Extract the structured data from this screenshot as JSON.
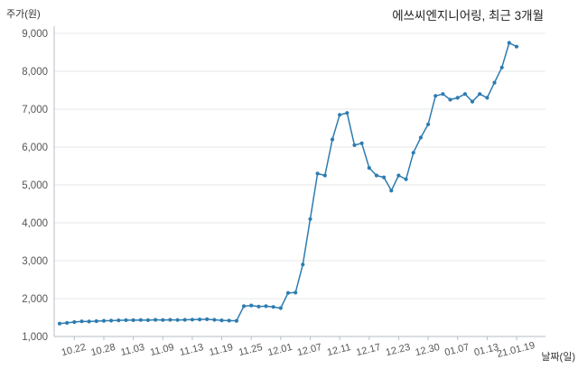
{
  "chart_data": {
    "type": "line",
    "title": "에쓰씨엔지니어링, 최근 3개월",
    "ylabel": "주가(원)",
    "xlabel": "날짜(일)",
    "ylim": [
      1000,
      9000
    ],
    "y_ticks": [
      1000,
      2000,
      3000,
      4000,
      5000,
      6000,
      7000,
      8000,
      9000
    ],
    "y_tick_labels": [
      "1,000",
      "2,000",
      "3,000",
      "4,000",
      "5,000",
      "6,000",
      "7,000",
      "8,000",
      "9,000"
    ],
    "x": [
      "10.20",
      "10.21",
      "10.22",
      "10.23",
      "10.26",
      "10.27",
      "10.28",
      "10.29",
      "10.30",
      "11.02",
      "11.03",
      "11.04",
      "11.05",
      "11.06",
      "11.09",
      "11.10",
      "11.11",
      "11.12",
      "11.13",
      "11.16",
      "11.17",
      "11.18",
      "11.19",
      "11.20",
      "11.23",
      "11.24",
      "11.25",
      "11.26",
      "11.27",
      "11.30",
      "12.01",
      "12.02",
      "12.03",
      "12.04",
      "12.07",
      "12.08",
      "12.09",
      "12.10",
      "12.11",
      "12.14",
      "12.15",
      "12.16",
      "12.17",
      "12.18",
      "12.21",
      "12.22",
      "12.23",
      "12.24",
      "12.28",
      "12.29",
      "12.30",
      "01.04",
      "01.05",
      "01.06",
      "01.07",
      "01.08",
      "01.11",
      "01.12",
      "01.13",
      "01.14",
      "01.15",
      "01.18",
      "01.19"
    ],
    "values": [
      1340,
      1360,
      1380,
      1400,
      1395,
      1405,
      1415,
      1420,
      1425,
      1430,
      1430,
      1435,
      1430,
      1440,
      1435,
      1440,
      1435,
      1440,
      1445,
      1450,
      1455,
      1440,
      1425,
      1420,
      1415,
      1800,
      1820,
      1790,
      1800,
      1780,
      1750,
      2150,
      2160,
      2900,
      4100,
      5300,
      5250,
      6200,
      6850,
      6900,
      6050,
      6100,
      5450,
      5250,
      5200,
      4850,
      5250,
      5150,
      5850,
      6250,
      6600,
      7350,
      7400,
      7250,
      7300,
      7400,
      7200,
      7400,
      7300,
      7700,
      8100,
      8750,
      8650
    ],
    "x_tick_indices": [
      2,
      6,
      10,
      14,
      18,
      22,
      26,
      30,
      34,
      38,
      42,
      46,
      50,
      54,
      58,
      62
    ],
    "x_tick_labels": [
      "10.22",
      "10.28",
      "11.03",
      "11.09",
      "11.13",
      "11.19",
      "11.25",
      "12.01",
      "12.07",
      "12.11",
      "12.17",
      "12.23",
      "12.30",
      "01.07",
      "01.13",
      "21.01.19"
    ],
    "line_color": "#2d7cb0",
    "grid": "horizontal",
    "legend": "none"
  },
  "colors": {
    "background": "#ffffff",
    "gridline": "#e4e7ea",
    "axis_line": "#b7bec4",
    "tick_text": "#555555",
    "title_text": "#222222"
  }
}
